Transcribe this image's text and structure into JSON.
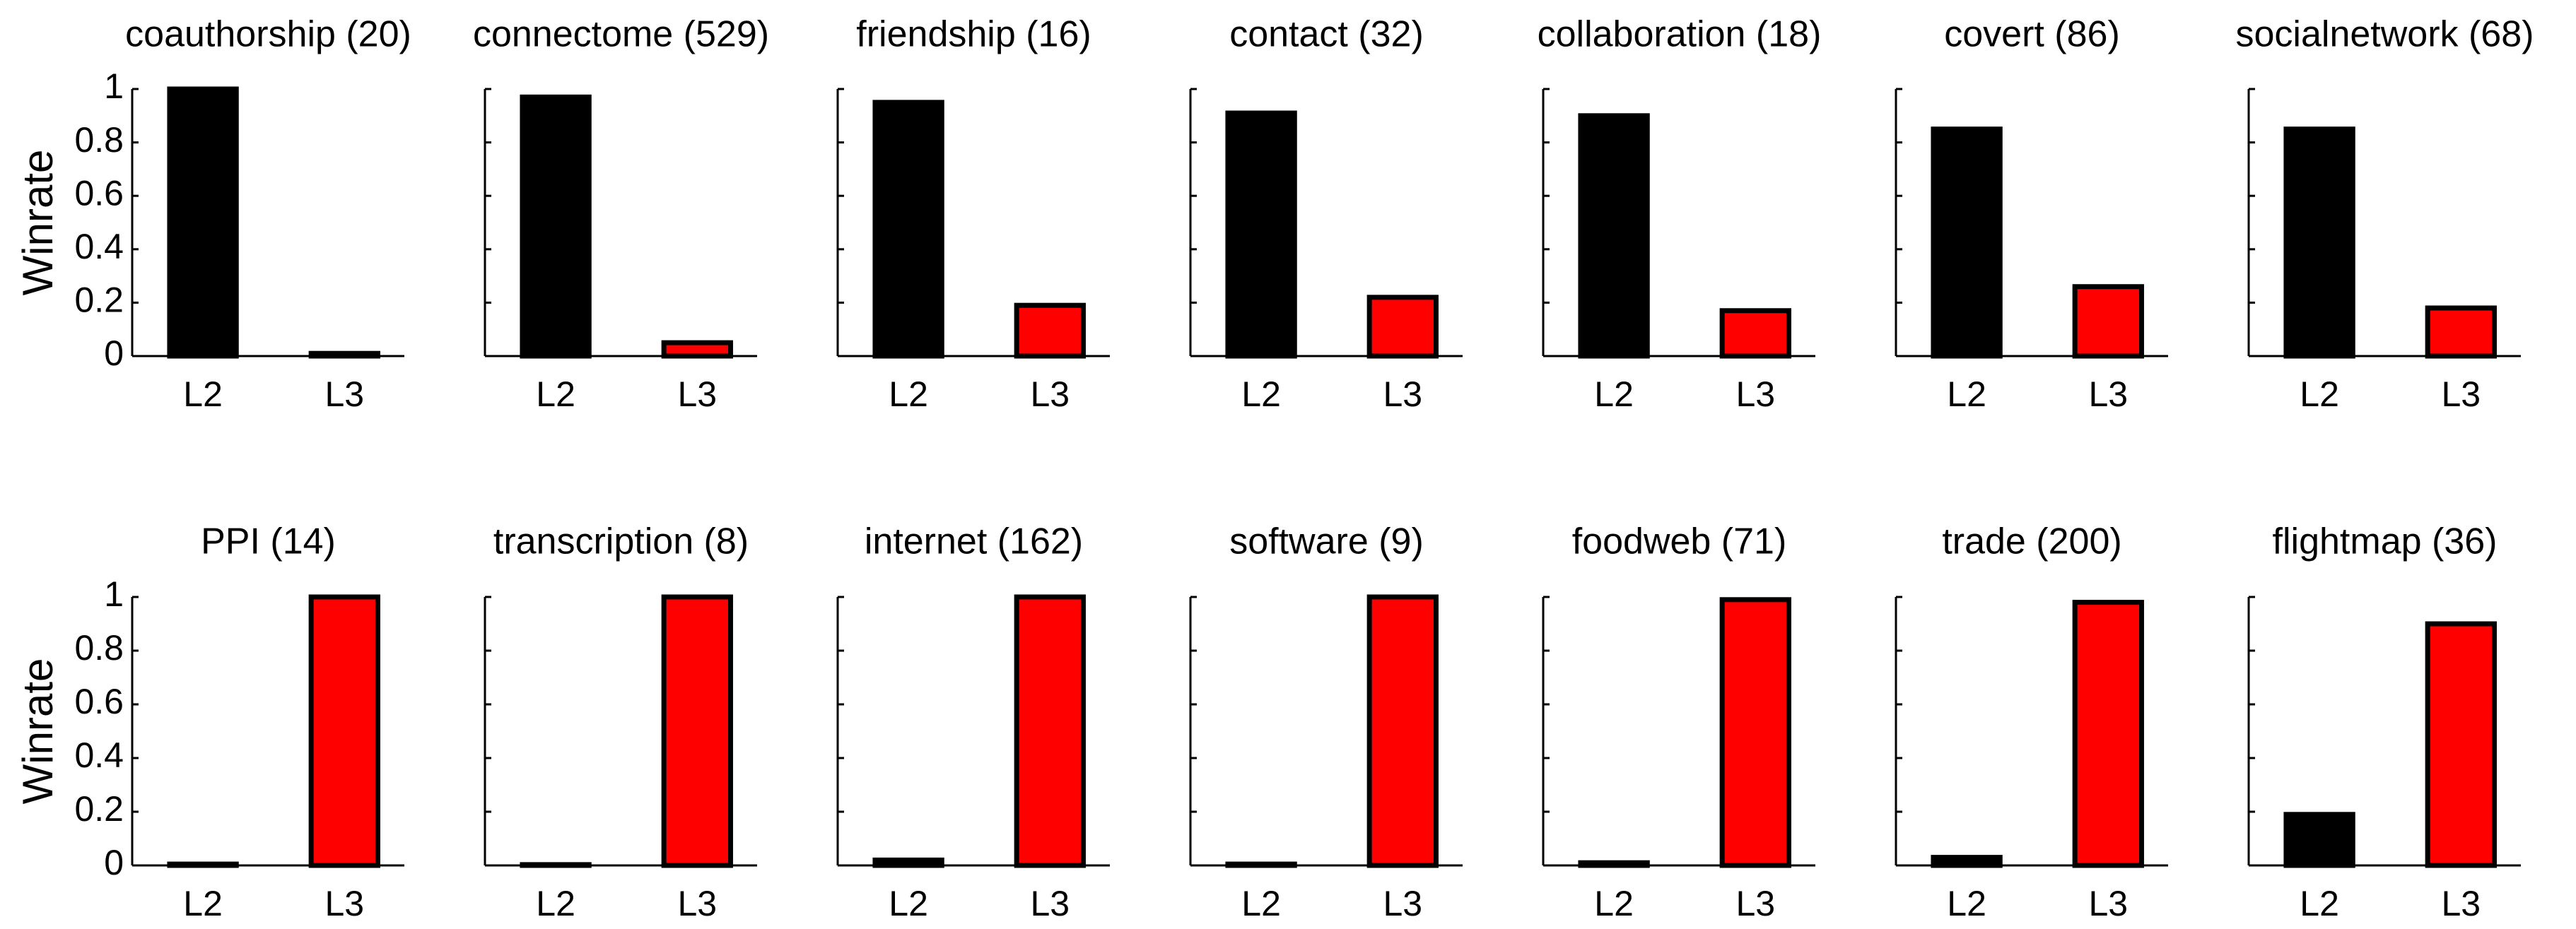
{
  "chart_data": [
    {
      "type": "bar",
      "title": "coauthorship (20)",
      "ylabel": "Winrate",
      "categories": [
        "L2",
        "L3"
      ],
      "values": [
        1.0,
        0.01
      ],
      "colors": [
        "#000000",
        "#ff0000"
      ],
      "ylim": [
        0,
        1
      ],
      "yticks": [
        0,
        0.2,
        0.4,
        0.6,
        0.8,
        1
      ]
    },
    {
      "type": "bar",
      "title": "connectome (529)",
      "categories": [
        "L2",
        "L3"
      ],
      "values": [
        0.97,
        0.05
      ],
      "colors": [
        "#000000",
        "#ff0000"
      ],
      "ylim": [
        0,
        1
      ],
      "yticks": [
        0,
        0.2,
        0.4,
        0.6,
        0.8,
        1
      ]
    },
    {
      "type": "bar",
      "title": "friendship (16)",
      "categories": [
        "L2",
        "L3"
      ],
      "values": [
        0.95,
        0.19
      ],
      "colors": [
        "#000000",
        "#ff0000"
      ],
      "ylim": [
        0,
        1
      ],
      "yticks": [
        0,
        0.2,
        0.4,
        0.6,
        0.8,
        1
      ]
    },
    {
      "type": "bar",
      "title": "contact (32)",
      "categories": [
        "L2",
        "L3"
      ],
      "values": [
        0.91,
        0.22
      ],
      "colors": [
        "#000000",
        "#ff0000"
      ],
      "ylim": [
        0,
        1
      ],
      "yticks": [
        0,
        0.2,
        0.4,
        0.6,
        0.8,
        1
      ]
    },
    {
      "type": "bar",
      "title": "collaboration (18)",
      "categories": [
        "L2",
        "L3"
      ],
      "values": [
        0.9,
        0.17
      ],
      "colors": [
        "#000000",
        "#ff0000"
      ],
      "ylim": [
        0,
        1
      ],
      "yticks": [
        0,
        0.2,
        0.4,
        0.6,
        0.8,
        1
      ]
    },
    {
      "type": "bar",
      "title": "covert (86)",
      "categories": [
        "L2",
        "L3"
      ],
      "values": [
        0.85,
        0.26
      ],
      "colors": [
        "#000000",
        "#ff0000"
      ],
      "ylim": [
        0,
        1
      ],
      "yticks": [
        0,
        0.2,
        0.4,
        0.6,
        0.8,
        1
      ]
    },
    {
      "type": "bar",
      "title": "socialnetwork (68)",
      "categories": [
        "L2",
        "L3"
      ],
      "values": [
        0.85,
        0.18
      ],
      "colors": [
        "#000000",
        "#ff0000"
      ],
      "ylim": [
        0,
        1
      ],
      "yticks": [
        0,
        0.2,
        0.4,
        0.6,
        0.8,
        1
      ]
    },
    {
      "type": "bar",
      "title": "PPI (14)",
      "ylabel": "Winrate",
      "categories": [
        "L2",
        "L3"
      ],
      "values": [
        0.005,
        1.0
      ],
      "colors": [
        "#000000",
        "#ff0000"
      ],
      "ylim": [
        0,
        1
      ],
      "yticks": [
        0,
        0.2,
        0.4,
        0.6,
        0.8,
        1
      ]
    },
    {
      "type": "bar",
      "title": "transcription (8)",
      "categories": [
        "L2",
        "L3"
      ],
      "values": [
        0.003,
        1.0
      ],
      "colors": [
        "#000000",
        "#ff0000"
      ],
      "ylim": [
        0,
        1
      ],
      "yticks": [
        0,
        0.2,
        0.4,
        0.6,
        0.8,
        1
      ]
    },
    {
      "type": "bar",
      "title": "internet (162)",
      "categories": [
        "L2",
        "L3"
      ],
      "values": [
        0.02,
        1.0
      ],
      "colors": [
        "#000000",
        "#ff0000"
      ],
      "ylim": [
        0,
        1
      ],
      "yticks": [
        0,
        0.2,
        0.4,
        0.6,
        0.8,
        1
      ]
    },
    {
      "type": "bar",
      "title": "software (9)",
      "categories": [
        "L2",
        "L3"
      ],
      "values": [
        0.005,
        1.0
      ],
      "colors": [
        "#000000",
        "#ff0000"
      ],
      "ylim": [
        0,
        1
      ],
      "yticks": [
        0,
        0.2,
        0.4,
        0.6,
        0.8,
        1
      ]
    },
    {
      "type": "bar",
      "title": "foodweb (71)",
      "categories": [
        "L2",
        "L3"
      ],
      "values": [
        0.01,
        0.99
      ],
      "colors": [
        "#000000",
        "#ff0000"
      ],
      "ylim": [
        0,
        1
      ],
      "yticks": [
        0,
        0.2,
        0.4,
        0.6,
        0.8,
        1
      ]
    },
    {
      "type": "bar",
      "title": "trade (200)",
      "categories": [
        "L2",
        "L3"
      ],
      "values": [
        0.03,
        0.98
      ],
      "colors": [
        "#000000",
        "#ff0000"
      ],
      "ylim": [
        0,
        1
      ],
      "yticks": [
        0,
        0.2,
        0.4,
        0.6,
        0.8,
        1
      ]
    },
    {
      "type": "bar",
      "title": "flightmap (36)",
      "categories": [
        "L2",
        "L3"
      ],
      "values": [
        0.19,
        0.9
      ],
      "colors": [
        "#000000",
        "#ff0000"
      ],
      "ylim": [
        0,
        1
      ],
      "yticks": [
        0,
        0.2,
        0.4,
        0.6,
        0.8,
        1
      ]
    }
  ]
}
